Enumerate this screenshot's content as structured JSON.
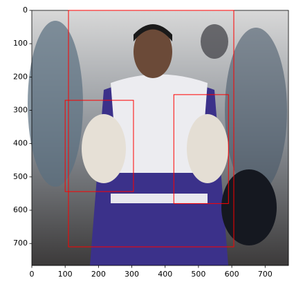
{
  "chart_data": {
    "type": "image",
    "xlim": [
      0,
      770
    ],
    "ylim": [
      0,
      766
    ],
    "y_inverted": true,
    "xticks": [
      0,
      100,
      200,
      300,
      400,
      500,
      600,
      700
    ],
    "yticks": [
      0,
      100,
      200,
      300,
      400,
      500,
      600,
      700
    ],
    "box_color": "#ff0000",
    "boxes": [
      {
        "x0": 110,
        "y0": 0,
        "x1": 606,
        "y1": 710
      },
      {
        "x0": 100,
        "y0": 270,
        "x1": 305,
        "y1": 544
      },
      {
        "x0": 426,
        "y0": 253,
        "x1": 590,
        "y1": 580
      }
    ]
  }
}
